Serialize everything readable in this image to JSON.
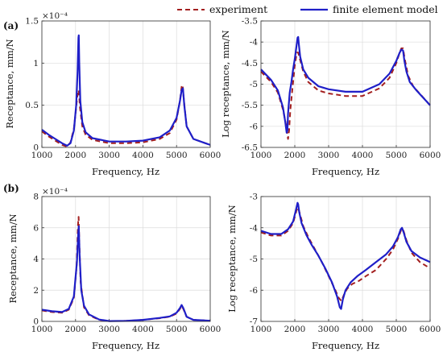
{
  "legend": {
    "experiment_label": "experiment",
    "model_label": "finite element model",
    "experiment_color": "#a31f1f",
    "model_color": "#1f1fc8"
  },
  "panels": {
    "a": "(a)",
    "b": "(b)"
  },
  "chart_data": [
    {
      "type": "line",
      "panel": "a-left",
      "xlabel": "Frequency, Hz",
      "ylabel": "Receptance, mm/N",
      "exponent": "×10⁻⁴",
      "xlim": [
        1000,
        6000
      ],
      "ylim": [
        0,
        1.5
      ],
      "xticks": [
        "1000",
        "2000",
        "3000",
        "4000",
        "5000",
        "6000"
      ],
      "yticks": [
        "0",
        "0.5",
        "1",
        "1.5"
      ],
      "grid": true,
      "series": [
        {
          "name": "experiment",
          "style": "dashed",
          "x": [
            1000,
            1200,
            1400,
            1600,
            1750,
            1850,
            1950,
            2000,
            2050,
            2080,
            2100,
            2130,
            2200,
            2300,
            2500,
            3000,
            3500,
            4000,
            4500,
            4800,
            5000,
            5100,
            5150,
            5180,
            5220,
            5300,
            5500,
            6000
          ],
          "y": [
            0.19,
            0.13,
            0.08,
            0.03,
            0.01,
            0.06,
            0.22,
            0.4,
            0.6,
            0.68,
            0.66,
            0.48,
            0.25,
            0.15,
            0.09,
            0.05,
            0.05,
            0.06,
            0.1,
            0.17,
            0.33,
            0.55,
            0.72,
            0.74,
            0.55,
            0.25,
            0.1,
            0.03
          ]
        },
        {
          "name": "finite element model",
          "style": "solid",
          "x": [
            1000,
            1200,
            1400,
            1600,
            1750,
            1850,
            1950,
            2020,
            2060,
            2085,
            2095,
            2110,
            2140,
            2200,
            2300,
            2500,
            3000,
            3500,
            4000,
            4500,
            4800,
            5000,
            5100,
            5150,
            5190,
            5230,
            5300,
            5500,
            6000
          ],
          "y": [
            0.21,
            0.15,
            0.1,
            0.05,
            0.02,
            0.05,
            0.2,
            0.5,
            0.9,
            1.3,
            1.33,
            1.0,
            0.55,
            0.3,
            0.18,
            0.11,
            0.07,
            0.07,
            0.08,
            0.12,
            0.2,
            0.35,
            0.55,
            0.68,
            0.7,
            0.5,
            0.25,
            0.1,
            0.03
          ]
        }
      ]
    },
    {
      "type": "line",
      "panel": "a-right",
      "xlabel": "Frequency, Hz",
      "ylabel": "Log receptance, mm/N",
      "xlim": [
        1000,
        6000
      ],
      "ylim": [
        -6.5,
        -3.5
      ],
      "xticks": [
        "1000",
        "2000",
        "3000",
        "4000",
        "5000",
        "6000"
      ],
      "yticks": [
        "-3.5",
        "-4",
        "-4.5",
        "-5",
        "-5.5",
        "-6",
        "-6.5"
      ],
      "grid": true,
      "series": [
        {
          "name": "experiment",
          "style": "dashed",
          "x": [
            1000,
            1300,
            1500,
            1650,
            1750,
            1800,
            1830,
            1870,
            1930,
            2000,
            2060,
            2100,
            2150,
            2250,
            2400,
            2700,
            3000,
            3500,
            4000,
            4500,
            4800,
            5000,
            5100,
            5150,
            5200,
            5250,
            5350,
            5500,
            6000
          ],
          "y": [
            -4.7,
            -4.95,
            -5.2,
            -5.6,
            -6.0,
            -6.3,
            -6.1,
            -5.6,
            -5.1,
            -4.55,
            -4.25,
            -4.25,
            -4.4,
            -4.7,
            -4.95,
            -5.15,
            -5.22,
            -5.28,
            -5.28,
            -5.1,
            -4.85,
            -4.5,
            -4.25,
            -4.15,
            -4.15,
            -4.4,
            -4.8,
            -5.05,
            -5.5
          ]
        },
        {
          "name": "finite element model",
          "style": "solid",
          "x": [
            1000,
            1300,
            1500,
            1650,
            1720,
            1760,
            1780,
            1800,
            1850,
            1900,
            1950,
            2000,
            2050,
            2080,
            2100,
            2120,
            2160,
            2250,
            2400,
            2700,
            3000,
            3500,
            4000,
            4500,
            4800,
            5000,
            5100,
            5150,
            5200,
            5240,
            5300,
            5400,
            5600,
            6000
          ],
          "y": [
            -4.65,
            -4.9,
            -5.15,
            -5.55,
            -5.9,
            -6.15,
            -6.1,
            -5.7,
            -5.2,
            -4.95,
            -4.65,
            -4.4,
            -4.1,
            -3.9,
            -3.88,
            -4.05,
            -4.35,
            -4.65,
            -4.85,
            -5.05,
            -5.12,
            -5.18,
            -5.18,
            -5.0,
            -4.75,
            -4.45,
            -4.25,
            -4.18,
            -4.2,
            -4.45,
            -4.7,
            -4.95,
            -5.15,
            -5.5
          ]
        }
      ]
    },
    {
      "type": "line",
      "panel": "b-left",
      "xlabel": "Frequency, Hz",
      "ylabel": "Receptance, mm/N",
      "exponent": "×10⁻⁴",
      "xlim": [
        1000,
        6000
      ],
      "ylim": [
        0,
        8
      ],
      "xticks": [
        "1000",
        "2000",
        "3000",
        "4000",
        "5000",
        "6000"
      ],
      "yticks": [
        "0",
        "2",
        "4",
        "6",
        "8"
      ],
      "grid": true,
      "series": [
        {
          "name": "experiment",
          "style": "dashed",
          "x": [
            1000,
            1300,
            1600,
            1800,
            1950,
            2030,
            2070,
            2090,
            2110,
            2150,
            2250,
            2400,
            2700,
            3000,
            3500,
            4000,
            4500,
            4800,
            5000,
            5100,
            5150,
            5200,
            5300,
            5500,
            6000
          ],
          "y": [
            0.7,
            0.6,
            0.55,
            0.75,
            1.5,
            3.5,
            6.1,
            6.7,
            5.2,
            2.5,
            0.9,
            0.4,
            0.1,
            0.02,
            0.03,
            0.1,
            0.2,
            0.3,
            0.5,
            0.8,
            1.0,
            0.8,
            0.3,
            0.1,
            0.04
          ]
        },
        {
          "name": "finite element model",
          "style": "solid",
          "x": [
            1000,
            1300,
            1600,
            1800,
            1950,
            2040,
            2080,
            2095,
            2120,
            2170,
            2250,
            2400,
            2700,
            3000,
            3500,
            4000,
            4500,
            4800,
            5000,
            5100,
            5150,
            5200,
            5300,
            5500,
            6000
          ],
          "y": [
            0.75,
            0.65,
            0.6,
            0.8,
            1.6,
            3.8,
            5.6,
            6.1,
            4.3,
            2.0,
            1.0,
            0.45,
            0.12,
            0.02,
            0.03,
            0.1,
            0.22,
            0.32,
            0.55,
            0.85,
            1.05,
            0.85,
            0.3,
            0.1,
            0.04
          ]
        }
      ]
    },
    {
      "type": "line",
      "panel": "b-right",
      "xlabel": "Frequency, Hz",
      "ylabel": "Log receptance, mm/N",
      "xlim": [
        1000,
        6000
      ],
      "ylim": [
        -7,
        -3
      ],
      "xticks": [
        "1000",
        "2000",
        "3000",
        "4000",
        "5000",
        "6000"
      ],
      "yticks": [
        "-3",
        "-4",
        "-5",
        "-6",
        "-7"
      ],
      "grid": true,
      "series": [
        {
          "name": "experiment",
          "style": "dashed",
          "x": [
            1000,
            1300,
            1600,
            1800,
            1950,
            2050,
            2100,
            2150,
            2250,
            2400,
            2600,
            2800,
            3000,
            3200,
            3300,
            3380,
            3450,
            3550,
            3700,
            3900,
            4100,
            4400,
            4700,
            4900,
            5050,
            5150,
            5200,
            5300,
            5450,
            5700,
            6000
          ],
          "y": [
            -4.15,
            -4.25,
            -4.25,
            -4.1,
            -3.85,
            -3.45,
            -3.35,
            -3.55,
            -3.95,
            -4.3,
            -4.7,
            -5.1,
            -5.55,
            -6.0,
            -6.25,
            -6.35,
            -6.15,
            -5.95,
            -5.8,
            -5.7,
            -5.55,
            -5.35,
            -5.0,
            -4.7,
            -4.35,
            -4.05,
            -4.05,
            -4.4,
            -4.8,
            -5.1,
            -5.3
          ]
        },
        {
          "name": "finite element model",
          "style": "solid",
          "x": [
            1000,
            1300,
            1600,
            1800,
            1950,
            2040,
            2080,
            2100,
            2130,
            2200,
            2350,
            2500,
            2700,
            2900,
            3100,
            3250,
            3330,
            3370,
            3420,
            3500,
            3650,
            3850,
            4100,
            4400,
            4700,
            4900,
            5050,
            5130,
            5170,
            5220,
            5300,
            5450,
            5700,
            6000
          ],
          "y": [
            -4.1,
            -4.2,
            -4.2,
            -4.05,
            -3.8,
            -3.4,
            -3.2,
            -3.25,
            -3.5,
            -3.85,
            -4.25,
            -4.55,
            -4.9,
            -5.3,
            -5.75,
            -6.2,
            -6.55,
            -6.6,
            -6.3,
            -6.0,
            -5.75,
            -5.55,
            -5.35,
            -5.1,
            -4.85,
            -4.6,
            -4.3,
            -4.05,
            -4.0,
            -4.15,
            -4.45,
            -4.75,
            -4.95,
            -5.1
          ]
        }
      ]
    }
  ]
}
